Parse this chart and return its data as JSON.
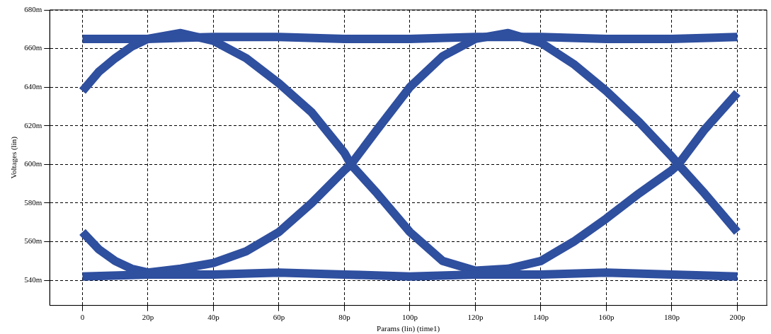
{
  "chart_data": {
    "type": "line",
    "xlabel": "Params (lin) (time1)",
    "ylabel": "Voltages (lin)",
    "x": [
      0,
      20,
      40,
      60,
      80,
      100,
      120,
      140,
      160,
      180,
      200
    ],
    "series": [
      {
        "color": "#2f4f9f",
        "values": [
          665,
          665,
          666,
          666,
          665,
          665,
          666,
          666,
          665,
          665,
          666
        ]
      },
      {
        "color": "#2f4f9f",
        "values": [
          542,
          543,
          543,
          544,
          543,
          542,
          543,
          543,
          544,
          543,
          542
        ]
      },
      {
        "color": "#2f4f9f",
        "x": [
          0,
          5,
          10,
          15,
          20,
          30,
          40,
          50,
          60,
          70,
          80,
          82,
          90,
          100,
          110,
          120,
          130,
          140,
          150,
          160,
          170,
          180,
          182,
          190,
          200
        ],
        "values": [
          638,
          648,
          655,
          661,
          665,
          668,
          664,
          655,
          642,
          627,
          606,
          600,
          585,
          565,
          550,
          545,
          546,
          550,
          560,
          572,
          585,
          597,
          600,
          618,
          637
        ]
      },
      {
        "color": "#2f4f9f",
        "x": [
          0,
          5,
          10,
          15,
          20,
          30,
          40,
          50,
          60,
          70,
          80,
          82,
          90,
          100,
          110,
          120,
          130,
          140,
          150,
          160,
          170,
          180,
          182,
          190,
          200
        ],
        "values": [
          565,
          556,
          550,
          546,
          544,
          546,
          549,
          555,
          565,
          580,
          597,
          600,
          618,
          640,
          656,
          665,
          668,
          663,
          652,
          638,
          622,
          604,
          600,
          585,
          565
        ]
      }
    ],
    "xlim": [
      -10,
      209
    ],
    "ylim": [
      527,
      680
    ],
    "xticks": [
      {
        "value": 0,
        "label": "0"
      },
      {
        "value": 20,
        "label": "20p"
      },
      {
        "value": 40,
        "label": "40p"
      },
      {
        "value": 60,
        "label": "60p"
      },
      {
        "value": 80,
        "label": "80p"
      },
      {
        "value": 100,
        "label": "100p"
      },
      {
        "value": 120,
        "label": "120p"
      },
      {
        "value": 140,
        "label": "140p"
      },
      {
        "value": 160,
        "label": "160p"
      },
      {
        "value": 180,
        "label": "180p"
      },
      {
        "value": 200,
        "label": "200p"
      }
    ],
    "yticks": [
      {
        "value": 540,
        "label": "540m"
      },
      {
        "value": 560,
        "label": "560m"
      },
      {
        "value": 580,
        "label": "580m"
      },
      {
        "value": 600,
        "label": "600m"
      },
      {
        "value": 620,
        "label": "620m"
      },
      {
        "value": 640,
        "label": "640m"
      },
      {
        "value": 660,
        "label": "660m"
      },
      {
        "value": 680,
        "label": "680m"
      }
    ],
    "grid": true,
    "marker": "none",
    "line_style": "solid"
  }
}
